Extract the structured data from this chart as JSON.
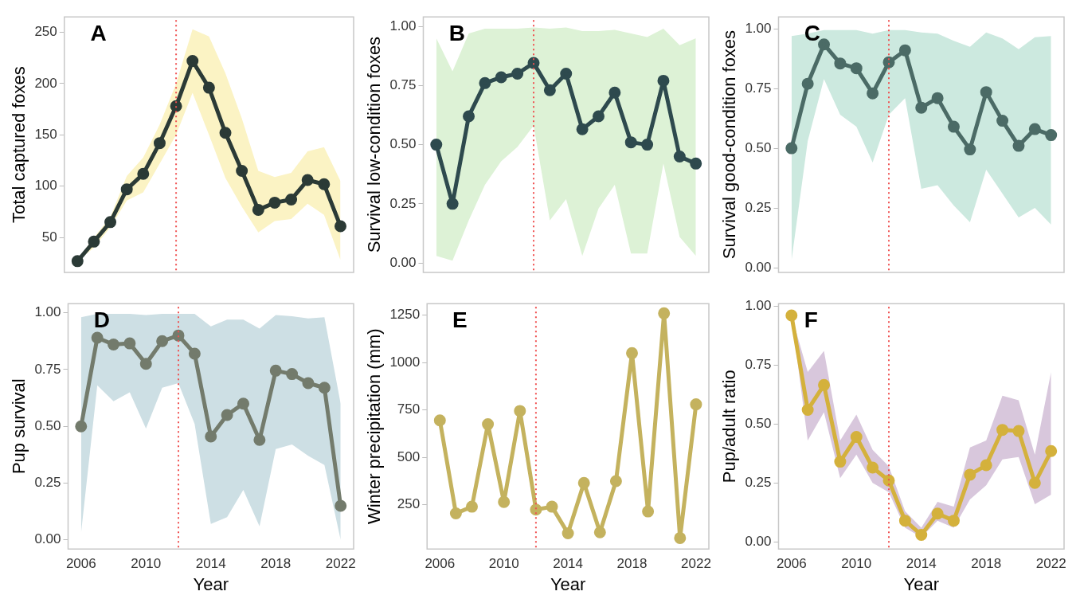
{
  "chart_data": [
    {
      "type": "line",
      "title": "A",
      "ylabel": "Total captured foxes",
      "x": [
        2006,
        2007,
        2008,
        2009,
        2010,
        2011,
        2012,
        2013,
        2014,
        2015,
        2016,
        2017,
        2018,
        2019,
        2020,
        2021,
        2022
      ],
      "xlim": [
        2005.2,
        2022.8
      ],
      "ylim": [
        16,
        265
      ],
      "yticks": [
        50,
        100,
        150,
        200,
        250
      ],
      "tick_labels": "y",
      "grid": false,
      "legend": false,
      "marker": "circle",
      "line_style": "solid",
      "ref_lines": [
        {
          "axis": "x",
          "value": 2012,
          "color": "#f05050",
          "line_style": "dotted"
        }
      ],
      "series": [
        {
          "color": "#2b3a36",
          "values": [
            27,
            46,
            65,
            97,
            112,
            142,
            178,
            222,
            196,
            152,
            115,
            77,
            84,
            87,
            106,
            102,
            61
          ],
          "lower": [
            27,
            40,
            60,
            86,
            94,
            122,
            150,
            191,
            150,
            108,
            80,
            55,
            66,
            68,
            83,
            72,
            28
          ],
          "upper": [
            28,
            50,
            70,
            110,
            128,
            160,
            200,
            253,
            246,
            210,
            166,
            115,
            109,
            113,
            134,
            138,
            105
          ]
        }
      ]
    },
    {
      "type": "line",
      "title": "B",
      "ylabel": "Survival low-condition foxes",
      "x": [
        2006,
        2007,
        2008,
        2009,
        2010,
        2011,
        2012,
        2013,
        2014,
        2015,
        2016,
        2017,
        2018,
        2019,
        2020,
        2021,
        2022
      ],
      "xlim": [
        2005.2,
        2022.8
      ],
      "ylim": [
        -0.04,
        1.04
      ],
      "yticks": [
        {
          "value": 0,
          "label": "0.00"
        },
        {
          "value": 0.25,
          "label": "0.25"
        },
        {
          "value": 0.5,
          "label": "0.50"
        },
        {
          "value": 0.75,
          "label": "0.75"
        },
        {
          "value": 1,
          "label": "1.00"
        }
      ],
      "tick_labels": "y",
      "grid": false,
      "legend": false,
      "marker": "circle",
      "line_style": "solid",
      "ref_lines": [
        {
          "axis": "x",
          "value": 2012,
          "color": "#f05050",
          "line_style": "dotted"
        }
      ],
      "series": [
        {
          "color": "#2e4a4e",
          "values": [
            0.5,
            0.25,
            0.62,
            0.76,
            0.785,
            0.8,
            0.845,
            0.73,
            0.8,
            0.565,
            0.62,
            0.72,
            0.51,
            0.5,
            0.77,
            0.45,
            0.42
          ],
          "lower": [
            0.03,
            0.01,
            0.18,
            0.33,
            0.43,
            0.49,
            0.58,
            0.18,
            0.27,
            0.03,
            0.23,
            0.33,
            0.04,
            0.04,
            0.42,
            0.11,
            0.03
          ],
          "upper": [
            0.95,
            0.81,
            0.97,
            0.99,
            0.99,
            0.99,
            0.995,
            0.99,
            0.995,
            0.98,
            0.98,
            0.985,
            0.97,
            0.955,
            0.99,
            0.92,
            0.95
          ]
        }
      ]
    },
    {
      "type": "line",
      "title": "C",
      "ylabel": "Survival good-condition foxes",
      "x": [
        2006,
        2007,
        2008,
        2009,
        2010,
        2011,
        2012,
        2013,
        2014,
        2015,
        2016,
        2017,
        2018,
        2019,
        2020,
        2021,
        2022
      ],
      "xlim": [
        2005.2,
        2022.8
      ],
      "ylim": [
        -0.02,
        1.05
      ],
      "yticks": [
        {
          "value": 0,
          "label": "0.00"
        },
        {
          "value": 0.25,
          "label": "0.25"
        },
        {
          "value": 0.5,
          "label": "0.50"
        },
        {
          "value": 0.75,
          "label": "0.75"
        },
        {
          "value": 1,
          "label": "1.00"
        }
      ],
      "tick_labels": "y",
      "grid": false,
      "legend": false,
      "marker": "circle",
      "line_style": "solid",
      "ref_lines": [
        {
          "axis": "x",
          "value": 2012,
          "color": "#f05050",
          "line_style": "dotted"
        }
      ],
      "series": [
        {
          "color": "#4b6b66",
          "values": [
            0.5,
            0.77,
            0.935,
            0.855,
            0.835,
            0.73,
            0.86,
            0.91,
            0.67,
            0.71,
            0.59,
            0.495,
            0.735,
            0.615,
            0.51,
            0.58,
            0.555
          ],
          "lower": [
            0.03,
            0.53,
            0.79,
            0.64,
            0.59,
            0.44,
            0.64,
            0.71,
            0.33,
            0.345,
            0.26,
            0.19,
            0.41,
            0.31,
            0.21,
            0.25,
            0.18
          ],
          "upper": [
            0.97,
            0.98,
            0.995,
            0.995,
            0.995,
            0.98,
            0.995,
            0.995,
            0.985,
            0.98,
            0.95,
            0.925,
            0.985,
            0.96,
            0.915,
            0.965,
            0.97
          ]
        }
      ]
    },
    {
      "type": "line",
      "title": "D",
      "xlabel": "Year",
      "ylabel": "Pup survival",
      "x": [
        2006,
        2007,
        2008,
        2009,
        2010,
        2011,
        2012,
        2013,
        2014,
        2015,
        2016,
        2017,
        2018,
        2019,
        2020,
        2021,
        2022
      ],
      "xlim": [
        2005.2,
        2022.8
      ],
      "xticks": [
        2006,
        2010,
        2014,
        2018,
        2022
      ],
      "ylim": [
        -0.04,
        1.04
      ],
      "yticks": [
        {
          "value": 0,
          "label": "0.00"
        },
        {
          "value": 0.25,
          "label": "0.25"
        },
        {
          "value": 0.5,
          "label": "0.50"
        },
        {
          "value": 0.75,
          "label": "0.75"
        },
        {
          "value": 1,
          "label": "1.00"
        }
      ],
      "grid": false,
      "legend": false,
      "marker": "circle",
      "line_style": "solid",
      "ref_lines": [
        {
          "axis": "x",
          "value": 2012,
          "color": "#f05050",
          "line_style": "dotted"
        }
      ],
      "series": [
        {
          "color": "#737b6c",
          "values": [
            0.5,
            0.89,
            0.86,
            0.865,
            0.775,
            0.875,
            0.9,
            0.82,
            0.455,
            0.55,
            0.6,
            0.44,
            0.745,
            0.73,
            0.69,
            0.67,
            0.15
          ],
          "lower": [
            0.03,
            0.68,
            0.61,
            0.65,
            0.49,
            0.67,
            0.69,
            0.51,
            0.07,
            0.1,
            0.22,
            0.06,
            0.4,
            0.42,
            0.37,
            0.33,
            0.0
          ],
          "upper": [
            0.98,
            0.995,
            0.995,
            0.995,
            0.99,
            0.995,
            0.995,
            0.995,
            0.94,
            0.97,
            0.97,
            0.93,
            0.99,
            0.985,
            0.975,
            0.98,
            0.6
          ]
        }
      ]
    },
    {
      "type": "line",
      "title": "E",
      "xlabel": "Year",
      "ylabel": "Winter precipitation (mm)",
      "x": [
        2006,
        2007,
        2008,
        2009,
        2010,
        2011,
        2012,
        2013,
        2014,
        2015,
        2016,
        2017,
        2018,
        2019,
        2020,
        2021,
        2022
      ],
      "xlim": [
        2005.2,
        2022.8
      ],
      "xticks": [
        2006,
        2010,
        2014,
        2018,
        2022
      ],
      "ylim": [
        17,
        1311
      ],
      "yticks": [
        250,
        500,
        750,
        1000,
        1250
      ],
      "grid": false,
      "legend": false,
      "marker": "circle",
      "line_style": "solid",
      "ref_lines": [
        {
          "axis": "x",
          "value": 2012,
          "color": "#f05050",
          "line_style": "dotted"
        }
      ],
      "series": [
        {
          "color": "#c4b25e",
          "values": [
            695,
            205,
            240,
            675,
            265,
            745,
            225,
            240,
            100,
            365,
            105,
            375,
            1050,
            215,
            1260,
            75,
            780
          ]
        }
      ]
    },
    {
      "type": "line",
      "title": "F",
      "xlabel": "Year",
      "ylabel": "Pup/adult ratio",
      "x": [
        2006,
        2007,
        2008,
        2009,
        2010,
        2011,
        2012,
        2013,
        2014,
        2015,
        2016,
        2017,
        2018,
        2019,
        2020,
        2021,
        2022
      ],
      "xlim": [
        2005.2,
        2022.8
      ],
      "xticks": [
        2006,
        2010,
        2014,
        2018,
        2022
      ],
      "ylim": [
        -0.03,
        1.01
      ],
      "yticks": [
        {
          "value": 0,
          "label": "0.00"
        },
        {
          "value": 0.25,
          "label": "0.25"
        },
        {
          "value": 0.5,
          "label": "0.50"
        },
        {
          "value": 0.75,
          "label": "0.75"
        },
        {
          "value": 1,
          "label": "1.00"
        }
      ],
      "grid": false,
      "legend": false,
      "marker": "circle",
      "line_style": "solid",
      "ref_lines": [
        {
          "axis": "x",
          "value": 2012,
          "color": "#f05050",
          "line_style": "dotted"
        }
      ],
      "series": [
        {
          "color": "#d4b13c",
          "values": [
            0.96,
            0.56,
            0.665,
            0.34,
            0.445,
            0.315,
            0.26,
            0.09,
            0.03,
            0.12,
            0.09,
            0.285,
            0.325,
            0.475,
            0.47,
            0.25,
            0.385
          ],
          "lower": [
            0.96,
            0.43,
            0.55,
            0.27,
            0.37,
            0.25,
            0.21,
            0.06,
            0.02,
            0.09,
            0.06,
            0.18,
            0.24,
            0.35,
            0.36,
            0.16,
            0.2
          ],
          "upper": [
            0.96,
            0.72,
            0.81,
            0.43,
            0.54,
            0.39,
            0.32,
            0.13,
            0.06,
            0.17,
            0.15,
            0.4,
            0.43,
            0.62,
            0.6,
            0.37,
            0.72
          ]
        }
      ]
    }
  ]
}
